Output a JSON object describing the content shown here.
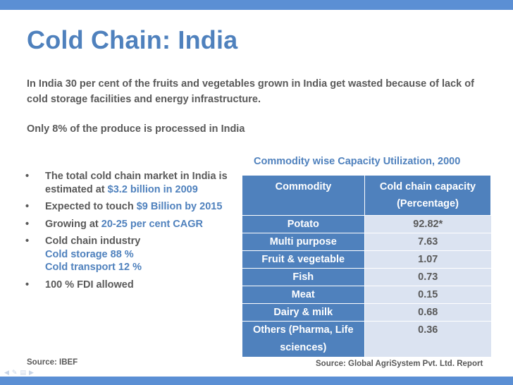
{
  "title": "Cold Chain: India",
  "intro": "In India  30 per cent of the fruits and vegetables grown in India get wasted because of lack of cold storage facilities and energy infrastructure.",
  "intro2": "Only 8% of the produce is processed in India",
  "bullets": {
    "b1_pre": "The total cold chain market in India is estimated at ",
    "b1_hl": "$3.2 billion in 2009",
    "b2_pre": "Expected to touch ",
    "b2_hl": "$9 Billion by 2015",
    "b3_pre": "Growing at ",
    "b3_hl": "20-25 per cent CAGR",
    "b4_main": "Cold chain industry",
    "b4_sub1": "Cold storage   88 %",
    "b4_sub2": "Cold transport   12 %",
    "b5": "100 % FDI allowed",
    "bullet_char": "•"
  },
  "source_left": "Source: IBEF",
  "table": {
    "title": "Commodity wise Capacity Utilization, 2000",
    "headers": [
      "Commodity",
      "Cold chain capacity (Percentage)"
    ],
    "rows": [
      {
        "commodity": "Potato",
        "value": "92.82*"
      },
      {
        "commodity": "Multi purpose",
        "value": "7.63"
      },
      {
        "commodity": "Fruit & vegetable",
        "value": "1.07"
      },
      {
        "commodity": "Fish",
        "value": "0.73"
      },
      {
        "commodity": "Meat",
        "value": "0.15"
      },
      {
        "commodity": "Dairy & milk",
        "value": "0.68"
      },
      {
        "commodity": "Others (Pharma, Life sciences)",
        "value": "0.36"
      }
    ]
  },
  "source_right": "Source: Global AgriSystem Pvt. Ltd. Report",
  "colors": {
    "accent": "#4f81bd",
    "bar": "#5b8fd4",
    "row_light": "#dbe3f1",
    "text": "#595959"
  }
}
